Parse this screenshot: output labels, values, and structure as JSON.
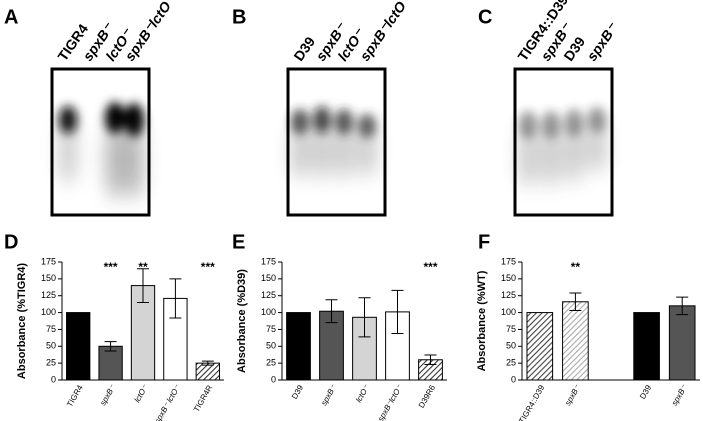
{
  "panel_labels": [
    "A",
    "B",
    "C",
    "D",
    "E",
    "F"
  ],
  "blots": [
    {
      "lanes": [
        "TIGR4",
        "spxB⁻",
        "lctO⁻",
        "spxB⁻lctO⁻"
      ]
    },
    {
      "lanes": [
        "D39",
        "spxB⁻",
        "lctO⁻",
        "spxB⁻lctO⁻"
      ]
    },
    {
      "lanes": [
        "TIGR4::D39",
        "spxB⁻",
        "D39",
        "spxB⁻"
      ]
    }
  ],
  "chart_data": [
    {
      "type": "bar",
      "ylabel": "Absorbance (%TIGR4)",
      "categories": [
        "TIGR4",
        "spxB⁻",
        "lctO⁻",
        "spxB⁻ lctO⁻",
        "TIGR4R"
      ],
      "values": [
        100,
        50,
        140,
        121,
        25
      ],
      "errors": [
        null,
        7,
        25,
        29,
        3
      ],
      "colors": [
        "#000000",
        "#555555",
        "#d4d4d4",
        "#ffffff",
        "#333333"
      ],
      "hatch": [
        false,
        false,
        false,
        false,
        true
      ],
      "significance": [
        null,
        "***",
        "**",
        null,
        "***"
      ],
      "ylim": [
        0,
        175
      ],
      "yticks": [
        0,
        25,
        50,
        75,
        100,
        125,
        150,
        175
      ]
    },
    {
      "type": "bar",
      "ylabel": "Absorbance (%D39)",
      "categories": [
        "D39",
        "spxB⁻",
        "lctO⁻",
        "spxB⁻lctO⁻",
        "D39R6"
      ],
      "values": [
        100,
        102,
        93,
        101,
        30
      ],
      "errors": [
        null,
        17,
        29,
        32,
        7
      ],
      "colors": [
        "#000000",
        "#555555",
        "#d4d4d4",
        "#ffffff",
        "#333333"
      ],
      "hatch": [
        false,
        false,
        false,
        false,
        true
      ],
      "significance": [
        null,
        null,
        null,
        null,
        "***"
      ],
      "ylim": [
        0,
        175
      ],
      "yticks": [
        0,
        25,
        50,
        75,
        100,
        125,
        150,
        175
      ]
    },
    {
      "type": "bar",
      "ylabel": "Absorbance (%WT)",
      "categories": [
        "TIGR4::D39",
        "spxB⁻",
        null,
        "D39",
        "spxB⁻"
      ],
      "values": [
        100,
        116,
        null,
        100,
        110
      ],
      "errors": [
        null,
        13,
        null,
        null,
        13
      ],
      "colors": [
        "#444444",
        "#aaaaaa",
        null,
        "#000000",
        "#555555"
      ],
      "hatch": [
        true,
        true,
        false,
        false,
        false
      ],
      "significance": [
        null,
        "**",
        null,
        null,
        null
      ],
      "ylim": [
        0,
        175
      ],
      "yticks": [
        0,
        25,
        50,
        75,
        100,
        125,
        150,
        175
      ]
    }
  ]
}
